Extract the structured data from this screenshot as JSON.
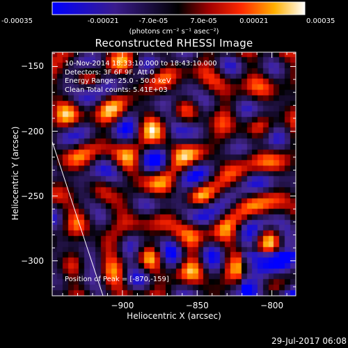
{
  "colorbar": {
    "ticks": [
      "-0.00035",
      "-0.00021",
      "-7.0e-05",
      "7.0e-05",
      "0.00021",
      "0.00035"
    ],
    "units": "(photons cm⁻² s⁻¹ asec⁻²)"
  },
  "title": "Reconstructed RHESSI Image",
  "info": [
    "10-Nov-2014 18:33:10.000 to 18:43:10.000",
    "Detectors: 3F 6F 9F, Att 0",
    "Energy Range: 25.0 - 50.0 keV",
    "Clean    Total counts: 5.41E+03"
  ],
  "peak_text": "Position of Peak = [-870,-159]",
  "datestamp": "29-Jul-2017 06:08",
  "chart_data": {
    "type": "heatmap",
    "title": "Reconstructed RHESSI Image",
    "xlabel": "Heliocentric X (arcsec)",
    "ylabel": "Heliocentric Y (arcsec)",
    "xlim": [
      -947,
      -784
    ],
    "ylim": [
      -327,
      -139
    ],
    "xticks": [
      -900,
      -850,
      -800
    ],
    "yticks": [
      -150,
      -200,
      -250,
      -300
    ],
    "colorbar_range": [
      -0.00035,
      0.00035
    ],
    "colormap": "blue-purple-black-red-orange-yellow-white",
    "peak": [
      -870,
      -159
    ],
    "limb_line": [
      [
        -947,
        -208
      ],
      [
        -913,
        -327
      ]
    ]
  }
}
